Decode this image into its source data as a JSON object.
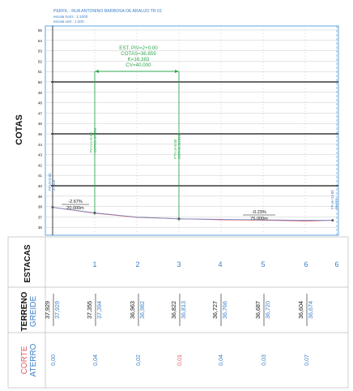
{
  "header": {
    "title": "PERFIL : RUA ANTONINO BARBOSA DE ARAUJO TR 01",
    "scale_h": "escala horiz.: 1:1000",
    "scale_v": "escala vert.: 1:200"
  },
  "profile": {
    "axis_label": "COTAS",
    "elev_ticks": [
      55,
      54,
      53,
      52,
      51,
      50,
      49,
      48,
      47,
      46,
      45,
      44,
      43,
      42,
      41,
      40,
      39,
      38,
      37,
      36
    ],
    "colors": {
      "frame": "#3a8fd6",
      "grid": "#c9c9c9",
      "green": "#2fa84f",
      "terrain": "#e05a6a",
      "grade": "#6e8cc9",
      "black": "#111111"
    },
    "curve": {
      "label_lines": [
        "EST. PIV=2+0.00",
        "COTAS=36.859",
        "K=16.383",
        "CV=40.000"
      ]
    },
    "vertical_labels": {
      "pp": "PP=0+0.00\n37.929",
      "pcv": "PCV=1+0.00\nCOTAS=37.394",
      "ptv": "PTV=3+0.00\nCOTAS=36.813",
      "fp": "FP=6+13.00\n36.674"
    },
    "grades": [
      {
        "slope": "-2.67%",
        "length": "20.000m"
      },
      {
        "slope": "-0.23%",
        "length": "75.000m"
      }
    ]
  },
  "chart_data": {
    "type": "line",
    "xlabel": "ESTACAS",
    "ylabel": "COTAS",
    "ylim": [
      35,
      55
    ],
    "x": [
      0,
      1,
      2,
      3,
      4,
      5,
      6,
      6.65
    ],
    "series": [
      {
        "name": "TERRENO",
        "values": [
          37.929,
          37.355,
          36.963,
          36.822,
          36.727,
          36.687,
          36.604,
          36.674
        ]
      },
      {
        "name": "GREIDE",
        "values": [
          37.929,
          37.394,
          36.982,
          36.813,
          36.766,
          36.72,
          36.674,
          36.674
        ]
      }
    ]
  },
  "bands": {
    "estacas": {
      "label": "ESTACAS",
      "values": [
        "1",
        "2",
        "3",
        "4",
        "5",
        "6",
        "6"
      ]
    },
    "terreno_greide": {
      "label_top": "TERRENO",
      "label_bottom": "GREIDE",
      "terreno": [
        "37,929",
        "37,355",
        "36,963",
        "36,822",
        "36,727",
        "36,687",
        "36,604"
      ],
      "greide": [
        "37,929",
        "37,394",
        "36,982",
        "36,813",
        "36,766",
        "36,720",
        "36,674"
      ]
    },
    "corte_aterro": {
      "label_top": "CORTE",
      "label_bottom": "ATERRO",
      "values": [
        "0,00",
        "0,04",
        "0,02",
        "0,01",
        "0,04",
        "0,03",
        "0,07"
      ]
    }
  }
}
